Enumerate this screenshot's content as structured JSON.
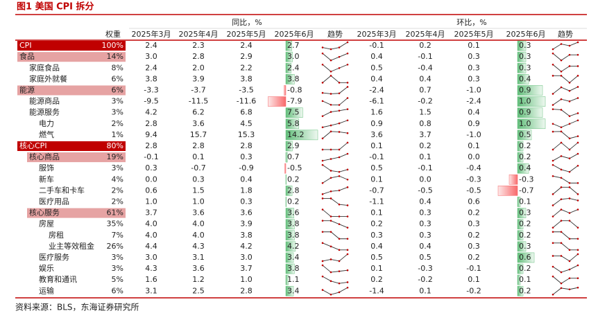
{
  "title": "图1 美国 CPI 拆分",
  "header": {
    "yoy": "同比，%",
    "mom": "环比，%",
    "weight": "权重",
    "months": [
      "2025年3月",
      "2025年4月",
      "2025年5月",
      "2025年6月"
    ],
    "trend": "趋势"
  },
  "rows": [
    {
      "name": "CPI",
      "weight": "100%",
      "yoy": [
        "2.4",
        "2.3",
        "2.4",
        "2.7"
      ],
      "mom": [
        "-0.1",
        "0.2",
        "0.1",
        "0.3"
      ]
    },
    {
      "name": "食品",
      "weight": "14%",
      "yoy": [
        "3.0",
        "2.8",
        "2.9",
        "3.0"
      ],
      "mom": [
        "0.4",
        "-0.1",
        "0.3",
        "0.3"
      ]
    },
    {
      "name": "家庭食品",
      "weight": "8%",
      "yoy": [
        "2.4",
        "2.0",
        "2.2",
        "2.4"
      ],
      "mom": [
        "0.5",
        "-0.4",
        "0.3",
        "0.3"
      ]
    },
    {
      "name": "家庭外就餐",
      "weight": "6%",
      "yoy": [
        "3.8",
        "3.9",
        "3.8",
        "3.8"
      ],
      "mom": [
        "0.4",
        "0.4",
        "0.3",
        "0.4"
      ]
    },
    {
      "name": "能源",
      "weight": "6%",
      "yoy": [
        "-3.3",
        "-3.7",
        "-3.5",
        "-0.8"
      ],
      "mom": [
        "-2.4",
        "0.7",
        "-1.0",
        "0.9"
      ]
    },
    {
      "name": "能源商品",
      "weight": "3%",
      "yoy": [
        "-9.5",
        "-11.5",
        "-11.6",
        "-7.9"
      ],
      "mom": [
        "-6.1",
        "-0.2",
        "-2.4",
        "1.0"
      ]
    },
    {
      "name": "能源服务",
      "weight": "3%",
      "yoy": [
        "4.2",
        "6.2",
        "6.8",
        "7.5"
      ],
      "mom": [
        "1.6",
        "1.5",
        "0.4",
        "0.9"
      ]
    },
    {
      "name": "电力",
      "weight": "2%",
      "yoy": [
        "2.8",
        "3.6",
        "4.5",
        "5.8"
      ],
      "mom": [
        "0.9",
        "0.8",
        "0.9",
        "1.0"
      ]
    },
    {
      "name": "燃气",
      "weight": "1%",
      "yoy": [
        "9.4",
        "15.7",
        "15.3",
        "14.2"
      ],
      "mom": [
        "3.6",
        "3.7",
        "-1.0",
        "0.5"
      ]
    },
    {
      "name": "核心CPI",
      "weight": "80%",
      "yoy": [
        "2.8",
        "2.8",
        "2.8",
        "2.9"
      ],
      "mom": [
        "0.1",
        "0.2",
        "0.1",
        "0.2"
      ]
    },
    {
      "name": "核心商品",
      "weight": "19%",
      "yoy": [
        "-0.1",
        "0.1",
        "0.3",
        "0.7"
      ],
      "mom": [
        "-0.1",
        "0.1",
        "0.0",
        "0.2"
      ]
    },
    {
      "name": "服饰",
      "weight": "3%",
      "yoy": [
        "0.3",
        "-0.7",
        "-0.9",
        "-0.5"
      ],
      "mom": [
        "0.5",
        "-0.1",
        "-0.4",
        "0.4"
      ]
    },
    {
      "name": "新车",
      "weight": "4%",
      "yoy": [
        "0.0",
        "0.3",
        "0.4",
        "0.2"
      ],
      "mom": [
        "0.1",
        "0.0",
        "-0.3",
        "-0.3"
      ]
    },
    {
      "name": "二手车和卡车",
      "weight": "2%",
      "yoy": [
        "0.6",
        "1.5",
        "1.8",
        "2.8"
      ],
      "mom": [
        "-0.7",
        "-0.5",
        "-0.5",
        "-0.7"
      ]
    },
    {
      "name": "医疗用品",
      "weight": "2%",
      "yoy": [
        "1.0",
        "1.0",
        "0.3",
        "0.2"
      ],
      "mom": [
        "-1.1",
        "0.4",
        "0.6",
        "0.1"
      ]
    },
    {
      "name": "核心服务",
      "weight": "61%",
      "yoy": [
        "3.7",
        "3.6",
        "3.6",
        "3.6"
      ],
      "mom": [
        "0.1",
        "0.3",
        "0.2",
        "0.3"
      ]
    },
    {
      "name": "房屋",
      "weight": "35%",
      "yoy": [
        "4.0",
        "4.0",
        "3.9",
        "3.8"
      ],
      "mom": [
        "0.2",
        "0.3",
        "0.3",
        "0.2"
      ]
    },
    {
      "name": "房租",
      "weight": "7%",
      "yoy": [
        "4.0",
        "4.0",
        "3.8",
        "3.8"
      ],
      "mom": [
        "0.3",
        "0.3",
        "0.2",
        "0.2"
      ]
    },
    {
      "name": "业主等效租金",
      "weight": "26%",
      "yoy": [
        "4.4",
        "4.3",
        "4.2",
        "4.2"
      ],
      "mom": [
        "0.4",
        "0.4",
        "0.3",
        "0.3"
      ]
    },
    {
      "name": "医疗服务",
      "weight": "3%",
      "yoy": [
        "3.0",
        "3.1",
        "3.0",
        "3.4"
      ],
      "mom": [
        "0.5",
        "0.5",
        "0.2",
        "0.6"
      ]
    },
    {
      "name": "娱乐",
      "weight": "3%",
      "yoy": [
        "4.3",
        "3.6",
        "3.7",
        "3.8"
      ],
      "mom": [
        "0.1",
        "-0.3",
        "-0.1",
        "0.2"
      ]
    },
    {
      "name": "教育和通讯",
      "weight": "5%",
      "yoy": [
        "1.6",
        "1.2",
        "1.0",
        "1.1"
      ],
      "mom": [
        "0.2",
        "-0.2",
        "0.1",
        "0.1"
      ]
    },
    {
      "name": "运输",
      "weight": "6%",
      "yoy": [
        "3.1",
        "2.5",
        "2.8",
        "3.4"
      ],
      "mom": [
        "-1.4",
        "0.1",
        "-0.2",
        "0.2"
      ]
    }
  ],
  "source": "资料来源：BLS，东海证券研究所"
}
